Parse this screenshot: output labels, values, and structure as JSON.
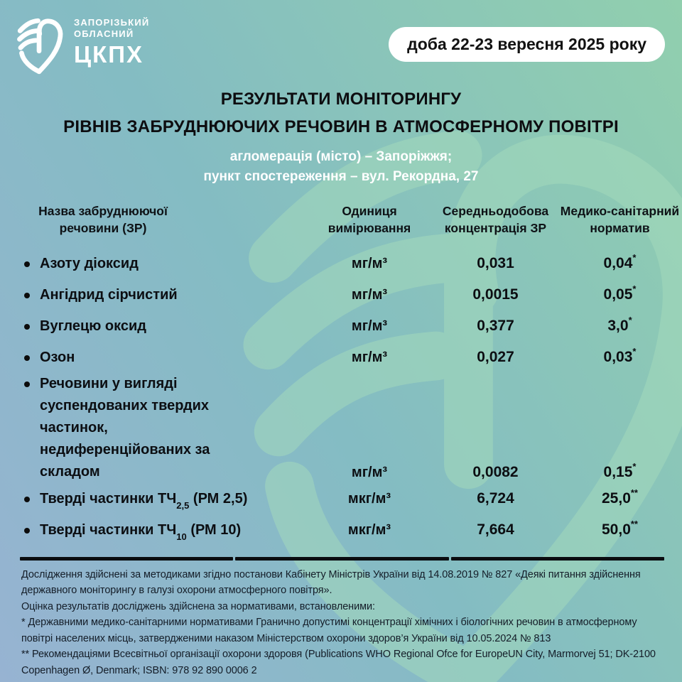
{
  "logo": {
    "org_line1": "ЗАПОРІЗЬКИЙ",
    "org_line2": "ОБЛАСНИЙ",
    "org_abbr": "ЦКПХ"
  },
  "header": {
    "date_badge": "доба 22-23 вересня 2025 року"
  },
  "title": {
    "line1": "РЕЗУЛЬТАТИ МОНІТОРИНГУ",
    "line2": "РІВНІВ ЗАБРУДНЮЮЧИХ РЕЧОВИН В АТМОСФЕРНОМУ ПОВІТРІ"
  },
  "subtitle": {
    "line1": "агломерація (місто) – Запоріжжя;",
    "line2": "пункт спостереження – вул. Рекордна, 27"
  },
  "table": {
    "headers": [
      "Назва забруднюючої\nречовини (ЗР)",
      "Одиниця\nвимірювання",
      "Середньодобова\nконцентрація ЗР",
      "Медико-санітарний\nнорматив"
    ],
    "rows": [
      {
        "name_lines": [
          [
            {
              "text": "Азоту діоксид"
            }
          ]
        ],
        "unit": "мг/м³",
        "concentration": "0,031",
        "norm": "0,04",
        "norm_mark": "*"
      },
      {
        "name_lines": [
          [
            {
              "text": "Ангідрид сірчистий"
            }
          ]
        ],
        "unit": "мг/м³",
        "concentration": "0,0015",
        "norm": "0,05",
        "norm_mark": "*"
      },
      {
        "name_lines": [
          [
            {
              "text": "Вуглецю оксид"
            }
          ]
        ],
        "unit": "мг/м³",
        "concentration": "0,377",
        "norm": "3,0",
        "norm_mark": "*"
      },
      {
        "name_lines": [
          [
            {
              "text": "Озон"
            }
          ]
        ],
        "unit": "мг/м³",
        "concentration": "0,027",
        "norm": "0,03",
        "norm_mark": "*"
      },
      {
        "name_lines": [
          [
            {
              "text": "Речовини у вигляді"
            }
          ],
          [
            {
              "text": "суспендованих твердих"
            }
          ],
          [
            {
              "text": "частинок,"
            }
          ],
          [
            {
              "text": "недиференційованих за"
            }
          ],
          [
            {
              "text": "складом"
            }
          ]
        ],
        "unit": "мг/м³",
        "concentration": "0,0082",
        "norm": "0,15",
        "norm_mark": "*"
      },
      {
        "name_lines": [
          [
            {
              "text": "Тверді частинки ТЧ"
            },
            {
              "sub": "2,5"
            },
            {
              "text": " (РМ 2,5)"
            }
          ]
        ],
        "unit": "мкг/м³",
        "concentration": "6,724",
        "norm": "25,0",
        "norm_mark": "**"
      },
      {
        "name_lines": [
          [
            {
              "text": "Тверді частинки ТЧ"
            },
            {
              "sub": "10"
            },
            {
              "text": " (РМ 10)"
            }
          ]
        ],
        "unit": "мкг/м³",
        "concentration": "7,664",
        "norm": "50,0",
        "norm_mark": "**"
      }
    ]
  },
  "footnotes": [
    " Дослідження здійснені за методиками згідно постанови Кабінету Міністрів України від 14.08.2019 № 827 «Деякі питання здійснення державного моніторингу в галузі охорони атмосферного повітря».",
    " Оцінка результатів досліджень здійснена за нормативами, встановленими:",
    "* Державними медико-санітарними нормативами Гранично допустимі концентрації хімічних і біологічних речовин в атмосферному повітрі населених місць, затвердженими наказом Міністерством охорони здоров’я України від 10.05.2024 № 813",
    "** Рекомендаціями Всесвітньої організації охорони здоровя (Publications WHO Regional Ofce for EuropeUN City, Marmorvej 51; DK-2100 Copenhagen Ø, Denmark; ISBN: 978 92 890 0006 2"
  ],
  "colors": {
    "background_blue": "#97b3d2",
    "background_teal": "#84bcc3",
    "background_green": "#91cfae",
    "watermark_green": "#a6dcbc",
    "badge_background": "#ffffff",
    "text_dark": "#0d0d10",
    "text_white": "#ffffff"
  }
}
